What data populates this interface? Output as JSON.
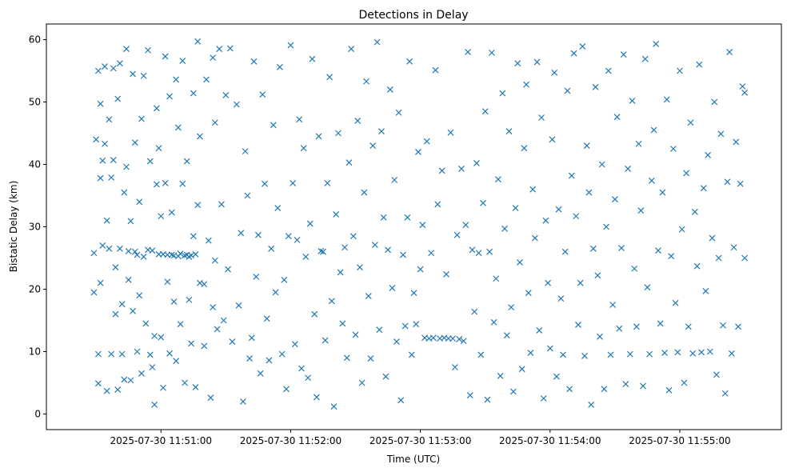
{
  "chart_data": {
    "type": "scatter",
    "title": "Detections in Delay",
    "xlabel": "Time (UTC)",
    "ylabel": "Bistatic Delay (km)",
    "x_origin": "2025-07-30 11:50:00",
    "xlim_seconds": [
      7,
      347
    ],
    "ylim": [
      -2.5,
      62.5
    ],
    "x_ticks": [
      {
        "value": 60,
        "label": "2025-07-30 11:51:00"
      },
      {
        "value": 120,
        "label": "2025-07-30 11:52:00"
      },
      {
        "value": 180,
        "label": "2025-07-30 11:53:00"
      },
      {
        "value": 240,
        "label": "2025-07-30 11:54:00"
      },
      {
        "value": 300,
        "label": "2025-07-30 11:55:00"
      }
    ],
    "y_ticks": [
      {
        "value": 0,
        "label": "0"
      },
      {
        "value": 10,
        "label": "10"
      },
      {
        "value": 20,
        "label": "20"
      },
      {
        "value": 30,
        "label": "30"
      },
      {
        "value": 40,
        "label": "40"
      },
      {
        "value": 50,
        "label": "50"
      },
      {
        "value": 60,
        "label": "60"
      }
    ],
    "marker": "x",
    "color": "#1f77b4",
    "points": [
      [
        29,
        25.8
      ],
      [
        29,
        19.5
      ],
      [
        30,
        44
      ],
      [
        31,
        9.6
      ],
      [
        31,
        4.9
      ],
      [
        31,
        55
      ],
      [
        32,
        21
      ],
      [
        32,
        37.8
      ],
      [
        32,
        49.7
      ],
      [
        33,
        27
      ],
      [
        33,
        40.6
      ],
      [
        34,
        55.7
      ],
      [
        34,
        43.3
      ],
      [
        35,
        3.7
      ],
      [
        35,
        31
      ],
      [
        36,
        47.2
      ],
      [
        36,
        26.5
      ],
      [
        37,
        37.9
      ],
      [
        37,
        9.6
      ],
      [
        38,
        55.4
      ],
      [
        38,
        40.7
      ],
      [
        39,
        23.5
      ],
      [
        39,
        16
      ],
      [
        40,
        50.5
      ],
      [
        40,
        3.9
      ],
      [
        41,
        56.2
      ],
      [
        41,
        26.5
      ],
      [
        42,
        17.6
      ],
      [
        42,
        9.6
      ],
      [
        43,
        35.5
      ],
      [
        43,
        5.5
      ],
      [
        44,
        58.5
      ],
      [
        44,
        39.6
      ],
      [
        45,
        26.1
      ],
      [
        45,
        21.5
      ],
      [
        46,
        5.4
      ],
      [
        46,
        30.9
      ],
      [
        47,
        54.5
      ],
      [
        47,
        16.5
      ],
      [
        48,
        26
      ],
      [
        48,
        43.5
      ],
      [
        49,
        25.5
      ],
      [
        49,
        10
      ],
      [
        50,
        34
      ],
      [
        50,
        19
      ],
      [
        51,
        47.3
      ],
      [
        51,
        6.5
      ],
      [
        52,
        25.2
      ],
      [
        52,
        54.2
      ],
      [
        53,
        14.5
      ],
      [
        54,
        26.3
      ],
      [
        54,
        58.3
      ],
      [
        55,
        40.5
      ],
      [
        55,
        9.5
      ],
      [
        56,
        26.2
      ],
      [
        56,
        7.5
      ],
      [
        57,
        12.5
      ],
      [
        57,
        1.5
      ],
      [
        58,
        36.8
      ],
      [
        58,
        49
      ],
      [
        59,
        42.6
      ],
      [
        59,
        25.6
      ],
      [
        60,
        31.7
      ],
      [
        60,
        12.3
      ],
      [
        61,
        25.6
      ],
      [
        61,
        4.2
      ],
      [
        62,
        57.3
      ],
      [
        62,
        37
      ],
      [
        63,
        25.5
      ],
      [
        63,
        21.2
      ],
      [
        64,
        50.9
      ],
      [
        64,
        9.7
      ],
      [
        65,
        25.5
      ],
      [
        65,
        32.3
      ],
      [
        66,
        25.4
      ],
      [
        66,
        18
      ],
      [
        67,
        53.6
      ],
      [
        67,
        8.5
      ],
      [
        68,
        25.3
      ],
      [
        68,
        45.9
      ],
      [
        69,
        25.7
      ],
      [
        69,
        14.4
      ],
      [
        70,
        56.6
      ],
      [
        70,
        36.9
      ],
      [
        71,
        25.4
      ],
      [
        71,
        5
      ],
      [
        72,
        25.5
      ],
      [
        72,
        40.5
      ],
      [
        73,
        18.3
      ],
      [
        73,
        25.2
      ],
      [
        74,
        25.4
      ],
      [
        74,
        11.3
      ],
      [
        75,
        51.4
      ],
      [
        75,
        28.5
      ],
      [
        76,
        25.6
      ],
      [
        76,
        4.3
      ],
      [
        77,
        33.5
      ],
      [
        77,
        59.7
      ],
      [
        78,
        21
      ],
      [
        78,
        44.5
      ],
      [
        80,
        20.8
      ],
      [
        80,
        10.9
      ],
      [
        81,
        53.6
      ],
      [
        82,
        27.8
      ],
      [
        83,
        2.6
      ],
      [
        84,
        57.1
      ],
      [
        84,
        17.1
      ],
      [
        85,
        46.7
      ],
      [
        85,
        24.6
      ],
      [
        86,
        13.6
      ],
      [
        87,
        58.5
      ],
      [
        88,
        33.6
      ],
      [
        89,
        15
      ],
      [
        90,
        51.1
      ],
      [
        91,
        23.2
      ],
      [
        92,
        58.6
      ],
      [
        93,
        11.6
      ],
      [
        95,
        49.6
      ],
      [
        96,
        17.4
      ],
      [
        97,
        29
      ],
      [
        98,
        2
      ],
      [
        99,
        42.1
      ],
      [
        100,
        35
      ],
      [
        101,
        8.9
      ],
      [
        102,
        12.2
      ],
      [
        103,
        56.5
      ],
      [
        104,
        22
      ],
      [
        105,
        28.7
      ],
      [
        106,
        6.5
      ],
      [
        107,
        51.2
      ],
      [
        108,
        36.9
      ],
      [
        109,
        15.3
      ],
      [
        110,
        8.6
      ],
      [
        111,
        26.5
      ],
      [
        112,
        46.3
      ],
      [
        113,
        19.5
      ],
      [
        114,
        33
      ],
      [
        115,
        55.6
      ],
      [
        116,
        9.6
      ],
      [
        117,
        21.5
      ],
      [
        118,
        4
      ],
      [
        119,
        28.5
      ],
      [
        120,
        59.1
      ],
      [
        121,
        37
      ],
      [
        122,
        11.2
      ],
      [
        123,
        27.9
      ],
      [
        124,
        47.2
      ],
      [
        125,
        7.3
      ],
      [
        126,
        42.6
      ],
      [
        127,
        25.2
      ],
      [
        128,
        5.8
      ],
      [
        129,
        30.5
      ],
      [
        130,
        56.9
      ],
      [
        131,
        16
      ],
      [
        132,
        2.7
      ],
      [
        133,
        44.5
      ],
      [
        134,
        26.1
      ],
      [
        135,
        26
      ],
      [
        136,
        11.8
      ],
      [
        137,
        37
      ],
      [
        138,
        54
      ],
      [
        139,
        18.1
      ],
      [
        140,
        1.2
      ],
      [
        141,
        32
      ],
      [
        142,
        45
      ],
      [
        143,
        22.7
      ],
      [
        144,
        14.5
      ],
      [
        145,
        26.7
      ],
      [
        146,
        9
      ],
      [
        147,
        40.3
      ],
      [
        148,
        58.5
      ],
      [
        149,
        28.5
      ],
      [
        150,
        12.7
      ],
      [
        151,
        47
      ],
      [
        152,
        23.5
      ],
      [
        153,
        5
      ],
      [
        154,
        35.5
      ],
      [
        155,
        53.3
      ],
      [
        156,
        18.9
      ],
      [
        157,
        8.9
      ],
      [
        158,
        43
      ],
      [
        159,
        27.1
      ],
      [
        160,
        59.6
      ],
      [
        161,
        13.5
      ],
      [
        162,
        45.3
      ],
      [
        163,
        31.5
      ],
      [
        164,
        6
      ],
      [
        165,
        26.3
      ],
      [
        166,
        52
      ],
      [
        167,
        20.2
      ],
      [
        168,
        37.5
      ],
      [
        169,
        11.6
      ],
      [
        170,
        48.3
      ],
      [
        171,
        2.2
      ],
      [
        172,
        25.5
      ],
      [
        173,
        14.1
      ],
      [
        174,
        31.5
      ],
      [
        175,
        56.5
      ],
      [
        176,
        9.5
      ],
      [
        177,
        19.4
      ],
      [
        178,
        14.4
      ],
      [
        179,
        42
      ],
      [
        180,
        23.2
      ],
      [
        181,
        30.3
      ],
      [
        182,
        12.2
      ],
      [
        183,
        43.7
      ],
      [
        184,
        12.1
      ],
      [
        185,
        25.8
      ],
      [
        186,
        12.2
      ],
      [
        187,
        55.1
      ],
      [
        188,
        33.6
      ],
      [
        189,
        12.1
      ],
      [
        190,
        39
      ],
      [
        191,
        12.2
      ],
      [
        192,
        22.4
      ],
      [
        193,
        12.1
      ],
      [
        194,
        45.1
      ],
      [
        195,
        12.1
      ],
      [
        196,
        7.5
      ],
      [
        197,
        28.7
      ],
      [
        198,
        12
      ],
      [
        199,
        39.3
      ],
      [
        200,
        11.7
      ],
      [
        201,
        30.3
      ],
      [
        202,
        58
      ],
      [
        203,
        3
      ],
      [
        204,
        26.3
      ],
      [
        205,
        16.4
      ],
      [
        206,
        40.2
      ],
      [
        207,
        25.8
      ],
      [
        208,
        9.5
      ],
      [
        209,
        33.8
      ],
      [
        210,
        48.5
      ],
      [
        211,
        2.3
      ],
      [
        212,
        26
      ],
      [
        213,
        57.9
      ],
      [
        214,
        14.7
      ],
      [
        215,
        21.7
      ],
      [
        216,
        37.6
      ],
      [
        217,
        6.1
      ],
      [
        218,
        51.4
      ],
      [
        219,
        29.7
      ],
      [
        220,
        12.6
      ],
      [
        221,
        45.3
      ],
      [
        222,
        17.1
      ],
      [
        223,
        3.6
      ],
      [
        224,
        33
      ],
      [
        225,
        56.2
      ],
      [
        226,
        24.3
      ],
      [
        227,
        7.2
      ],
      [
        228,
        42.6
      ],
      [
        229,
        52.8
      ],
      [
        230,
        19.4
      ],
      [
        231,
        9.8
      ],
      [
        232,
        36
      ],
      [
        233,
        28.2
      ],
      [
        234,
        56.4
      ],
      [
        235,
        13.4
      ],
      [
        236,
        47.5
      ],
      [
        237,
        2.5
      ],
      [
        238,
        31
      ],
      [
        239,
        21
      ],
      [
        240,
        10.5
      ],
      [
        241,
        44
      ],
      [
        242,
        54.7
      ],
      [
        243,
        6
      ],
      [
        244,
        32.8
      ],
      [
        245,
        18.5
      ],
      [
        246,
        9.5
      ],
      [
        247,
        26
      ],
      [
        248,
        51.8
      ],
      [
        249,
        4
      ],
      [
        250,
        38.2
      ],
      [
        251,
        57.8
      ],
      [
        252,
        31.7
      ],
      [
        253,
        14.3
      ],
      [
        254,
        21
      ],
      [
        255,
        58.9
      ],
      [
        256,
        9.3
      ],
      [
        257,
        43
      ],
      [
        258,
        35.5
      ],
      [
        259,
        1.5
      ],
      [
        260,
        26.5
      ],
      [
        261,
        52.4
      ],
      [
        262,
        22.2
      ],
      [
        263,
        12.4
      ],
      [
        264,
        40
      ],
      [
        265,
        4
      ],
      [
        266,
        30
      ],
      [
        267,
        55
      ],
      [
        268,
        9.5
      ],
      [
        269,
        17.5
      ],
      [
        270,
        34.4
      ],
      [
        271,
        47.6
      ],
      [
        272,
        13.7
      ],
      [
        273,
        26.6
      ],
      [
        274,
        57.6
      ],
      [
        275,
        4.8
      ],
      [
        276,
        39.3
      ],
      [
        277,
        9.6
      ],
      [
        278,
        50.2
      ],
      [
        279,
        23.3
      ],
      [
        280,
        14
      ],
      [
        281,
        43.3
      ],
      [
        282,
        32.6
      ],
      [
        283,
        4.5
      ],
      [
        284,
        56.9
      ],
      [
        285,
        20.3
      ],
      [
        286,
        9.6
      ],
      [
        287,
        37.4
      ],
      [
        288,
        45.5
      ],
      [
        289,
        59.3
      ],
      [
        290,
        26.2
      ],
      [
        291,
        14.5
      ],
      [
        292,
        35.5
      ],
      [
        293,
        9.8
      ],
      [
        294,
        50.4
      ],
      [
        295,
        3.8
      ],
      [
        296,
        25.3
      ],
      [
        297,
        42.5
      ],
      [
        298,
        17.8
      ],
      [
        299,
        9.9
      ],
      [
        300,
        55
      ],
      [
        301,
        29.6
      ],
      [
        302,
        5
      ],
      [
        303,
        38.6
      ],
      [
        304,
        14
      ],
      [
        305,
        46.7
      ],
      [
        306,
        9.7
      ],
      [
        307,
        32.4
      ],
      [
        308,
        23.7
      ],
      [
        309,
        56
      ],
      [
        310,
        9.9
      ],
      [
        311,
        36.2
      ],
      [
        312,
        19.7
      ],
      [
        313,
        41.5
      ],
      [
        314,
        10
      ],
      [
        315,
        28.2
      ],
      [
        316,
        50
      ],
      [
        317,
        6.3
      ],
      [
        318,
        25
      ],
      [
        319,
        44.9
      ],
      [
        320,
        14.2
      ],
      [
        321,
        3.3
      ],
      [
        322,
        37.2
      ],
      [
        323,
        58
      ],
      [
        324,
        9.7
      ],
      [
        325,
        26.7
      ],
      [
        326,
        43.6
      ],
      [
        327,
        14
      ],
      [
        328,
        36.9
      ],
      [
        329,
        52.5
      ],
      [
        330,
        51.5
      ],
      [
        330,
        25
      ]
    ]
  }
}
